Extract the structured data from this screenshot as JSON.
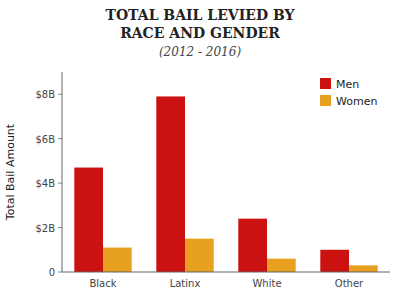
{
  "chart_data": {
    "type": "bar",
    "title": "TOTAL BAIL LEVIED BY\nRACE AND GENDER",
    "subtitle": "(2012 - 2016)",
    "y_label": "Total Bail Amount",
    "categories": [
      "Black",
      "Latinx",
      "White",
      "Other"
    ],
    "series": [
      {
        "name": "Men",
        "color": "#cc1111",
        "values": [
          4.7,
          7.9,
          2.4,
          1.0
        ]
      },
      {
        "name": "Women",
        "color": "#e8a020",
        "values": [
          1.1,
          1.5,
          0.6,
          0.3
        ]
      }
    ],
    "ylim": [
      0,
      9
    ],
    "yticks": [
      0,
      {
        "value": 2,
        "label": "$2B"
      },
      {
        "value": 4,
        "label": "$4B"
      },
      {
        "value": 6,
        "label": "$6B"
      },
      {
        "value": 8,
        "label": "$8B"
      }
    ],
    "grid": false,
    "legend": "upper right"
  }
}
